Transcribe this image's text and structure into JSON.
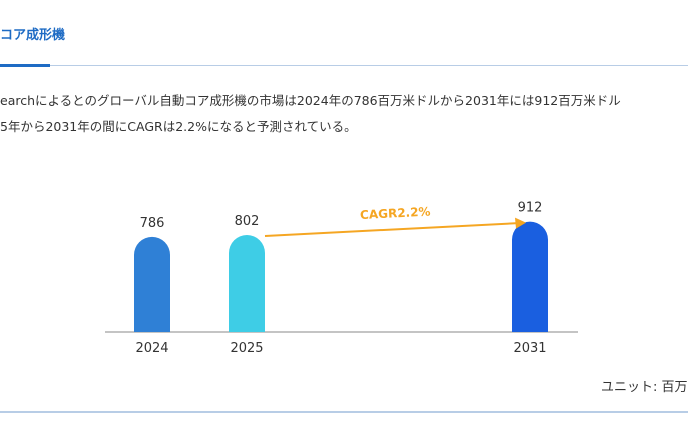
{
  "header": {
    "title": "コア成形機"
  },
  "description": [
    "earchによるとのグローバル自動コア成形機の市場は2024年の786百万米ドルから2031年には912百万米ドル",
    "5年から2031年の間にCAGRは2.2%になると予測されている。"
  ],
  "chart_data": {
    "type": "bar",
    "categories": [
      "2024",
      "2025",
      "2031"
    ],
    "values": [
      786,
      802,
      912
    ],
    "colors": [
      "#2f80d6",
      "#3ecde6",
      "#1a5fe0"
    ],
    "ylim": [
      0,
      1000
    ],
    "annotation": "CAGR2.2%",
    "annotation_color": "#f5a623",
    "unit": "ユニット: 百万"
  }
}
